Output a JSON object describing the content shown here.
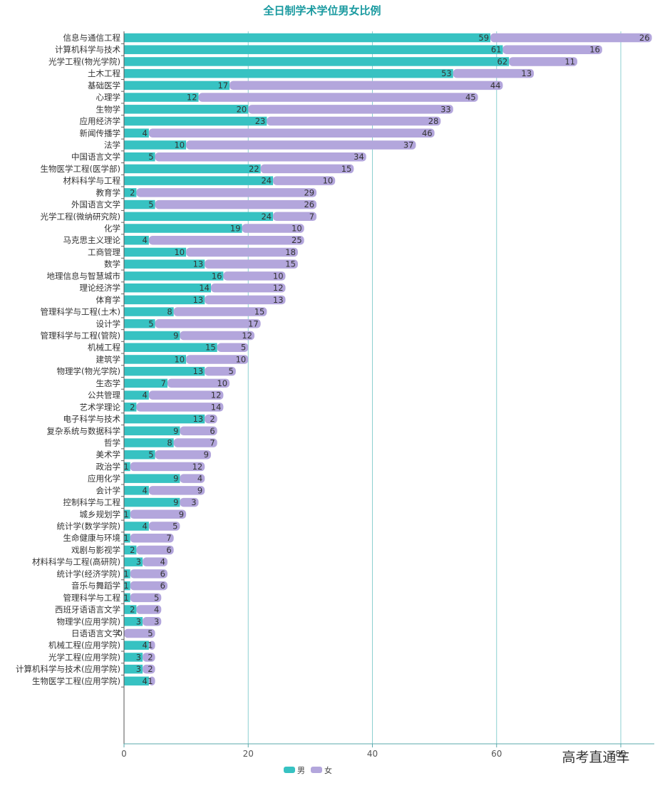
{
  "chart_data": {
    "type": "bar",
    "orientation": "horizontal",
    "stacked": true,
    "title": "全日制学术学位男女比例",
    "xlabel": "",
    "ylabel": "",
    "xlim": [
      0,
      85
    ],
    "x_ticks": [
      "0",
      "20",
      "40",
      "60",
      "80"
    ],
    "grid": "vertical",
    "legend_position": "bottom-center",
    "categories": [
      "信息与通信工程",
      "计算机科学与技术",
      "光学工程(物光学院)",
      "土木工程",
      "基础医学",
      "心理学",
      "生物学",
      "应用经济学",
      "新闻传播学",
      "法学",
      "中国语言文学",
      "生物医学工程(医学部)",
      "材料科学与工程",
      "教育学",
      "外国语言文学",
      "光学工程(微纳研究院)",
      "化学",
      "马克思主义理论",
      "工商管理",
      "数学",
      "地理信息与智慧城市",
      "理论经济学",
      "体育学",
      "管理科学与工程(土木)",
      "设计学",
      "管理科学与工程(管院)",
      "机械工程",
      "建筑学",
      "物理学(物光学院)",
      "生态学",
      "公共管理",
      "艺术学理论",
      "电子科学与技术",
      "复杂系统与数据科学",
      "哲学",
      "美术学",
      "政治学",
      "应用化学",
      "会计学",
      "控制科学与工程",
      "城乡规划学",
      "统计学(数学学院)",
      "生命健康与环境",
      "戏剧与影视学",
      "材料科学与工程(高研院)",
      "统计学(经济学院)",
      "音乐与舞蹈学",
      "管理科学与工程",
      "西班牙语语言文学",
      "物理学(应用学院)",
      "日语语言文学",
      "机械工程(应用学院)",
      "光学工程(应用学院)",
      "计算机科学与技术(应用学院)",
      "生物医学工程(应用学院)"
    ],
    "series": [
      {
        "name": "男",
        "color": "#37c2c2",
        "values": [
          59,
          61,
          62,
          53,
          17,
          12,
          20,
          23,
          4,
          10,
          5,
          22,
          24,
          2,
          5,
          24,
          19,
          4,
          10,
          13,
          16,
          14,
          13,
          8,
          5,
          9,
          15,
          10,
          13,
          7,
          4,
          2,
          13,
          9,
          8,
          5,
          1,
          9,
          4,
          9,
          1,
          4,
          1,
          2,
          3,
          1,
          1,
          1,
          2,
          3,
          0,
          4,
          3,
          3,
          4
        ]
      },
      {
        "name": "女",
        "color": "#b3a6dc",
        "values": [
          26,
          16,
          11,
          13,
          44,
          45,
          33,
          28,
          46,
          37,
          34,
          15,
          10,
          29,
          26,
          7,
          10,
          25,
          18,
          15,
          10,
          12,
          13,
          15,
          17,
          12,
          5,
          10,
          5,
          10,
          12,
          14,
          2,
          6,
          7,
          9,
          12,
          4,
          9,
          3,
          9,
          5,
          7,
          6,
          4,
          6,
          6,
          5,
          4,
          3,
          5,
          1,
          2,
          2,
          1
        ]
      }
    ]
  },
  "watermark": "高考直通车"
}
